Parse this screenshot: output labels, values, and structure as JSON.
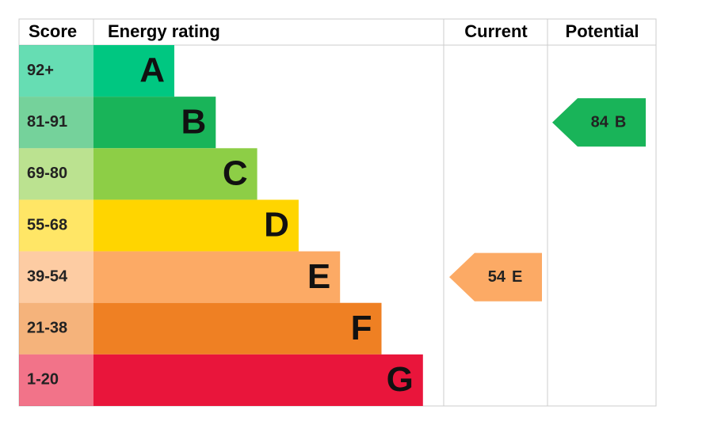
{
  "header": [
    "Score",
    "Energy rating",
    "Current",
    "Potential"
  ],
  "bands": [
    {
      "score": "92+",
      "rating": "A",
      "color": "#00c781"
    },
    {
      "score": "81-91",
      "rating": "B",
      "color": "#19b459"
    },
    {
      "score": "69-80",
      "rating": "C",
      "color": "#8dce46"
    },
    {
      "score": "55-68",
      "rating": "D",
      "color": "#ffd500"
    },
    {
      "score": "39-54",
      "rating": "E",
      "color": "#fcaa65"
    },
    {
      "score": "21-38",
      "rating": "F",
      "color": "#ef8023"
    },
    {
      "score": "1-20",
      "rating": "G",
      "color": "#e9153b"
    }
  ],
  "current": {
    "value": 54,
    "rating": "E"
  },
  "potential": {
    "value": 84,
    "rating": "B"
  }
}
